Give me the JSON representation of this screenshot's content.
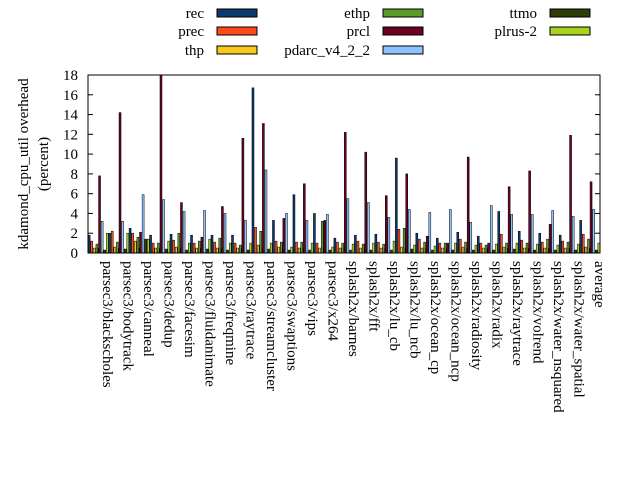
{
  "chart_data": {
    "type": "bar",
    "ylabel": "kdamond_cpu_util overhead\n(percent)",
    "ylabel_lines": [
      "kdamond_cpu_util overhead",
      "(percent)"
    ],
    "ylim": [
      0,
      18
    ],
    "yticks": [
      0,
      2,
      4,
      6,
      8,
      10,
      12,
      14,
      16,
      18
    ],
    "grid": false,
    "legend_position": "top",
    "categories": [
      "parsec3/blackscholes",
      "parsec3/bodytrack",
      "parsec3/canneal",
      "parsec3/dedup",
      "parsec3/facesim",
      "parsec3/fluidanimate",
      "parsec3/freqmine",
      "parsec3/raytrace",
      "parsec3/streamcluster",
      "parsec3/swaptions",
      "parsec3/vips",
      "parsec3/x264",
      "splash2x/barnes",
      "splash2x/fft",
      "splash2x/lu_cb",
      "splash2x/lu_ncb",
      "splash2x/ocean_cp",
      "splash2x/ocean_ncp",
      "splash2x/radiosity",
      "splash2x/radix",
      "splash2x/raytrace",
      "splash2x/volrend",
      "splash2x/water_nsquared",
      "splash2x/water_spatial",
      "average"
    ],
    "series": [
      {
        "name": "rec",
        "color": "#0b3a6e",
        "values": [
          1.8,
          2.0,
          2.5,
          1.8,
          1.9,
          1.8,
          1.8,
          1.8,
          16.7,
          3.3,
          5.9,
          4.0,
          1.5,
          1.8,
          1.9,
          9.6,
          2.0,
          1.5,
          2.1,
          1.7,
          4.2,
          2.2,
          2.0,
          1.8,
          3.3
        ]
      },
      {
        "name": "prec",
        "color": "#ff4a1c",
        "values": [
          1.2,
          2.2,
          2.0,
          1.0,
          1.3,
          1.0,
          1.1,
          1.0,
          2.6,
          1.2,
          1.1,
          1.0,
          1.1,
          1.2,
          1.1,
          2.4,
          1.4,
          1.0,
          1.4,
          1.0,
          1.9,
          1.3,
          1.1,
          1.2,
          1.9
        ]
      },
      {
        "name": "thp",
        "color": "#f8c81c",
        "values": [
          0.5,
          0.6,
          1.2,
          0.5,
          0.6,
          0.5,
          0.5,
          0.5,
          0.8,
          0.6,
          0.5,
          0.5,
          0.5,
          0.5,
          0.5,
          0.6,
          0.5,
          0.5,
          0.6,
          0.5,
          0.6,
          0.5,
          0.5,
          0.5,
          0.6
        ]
      },
      {
        "name": "ethp",
        "color": "#5a9b2a",
        "values": [
          0.9,
          1.1,
          1.6,
          1.0,
          2.0,
          1.2,
          1.5,
          0.8,
          2.2,
          1.1,
          1.1,
          3.2,
          1.0,
          0.9,
          0.9,
          2.5,
          1.1,
          1.0,
          1.1,
          0.8,
          1.0,
          1.0,
          1.4,
          1.1,
          1.4
        ]
      },
      {
        "name": "prcl",
        "color": "#6b0020",
        "values": [
          7.8,
          14.2,
          2.1,
          18.0,
          5.1,
          1.6,
          4.7,
          11.6,
          13.1,
          3.5,
          7.0,
          3.3,
          12.2,
          10.2,
          5.8,
          8.0,
          1.7,
          1.0,
          9.7,
          1.0,
          6.7,
          8.3,
          2.9,
          11.9,
          7.2
        ]
      },
      {
        "name": "pdarc_v4_2_2",
        "color": "#8cc4ff",
        "values": [
          3.2,
          3.2,
          5.9,
          5.4,
          4.2,
          4.3,
          4.0,
          3.3,
          8.4,
          4.0,
          3.3,
          3.9,
          5.5,
          5.1,
          3.6,
          4.4,
          4.1,
          4.4,
          3.1,
          4.8,
          3.9,
          3.9,
          4.3,
          3.7,
          4.4
        ]
      },
      {
        "name": "ttmo",
        "color": "#2e3c0c",
        "values": [
          0.3,
          0.4,
          1.4,
          0.4,
          0.3,
          0.4,
          0.3,
          0.3,
          0.4,
          0.3,
          0.3,
          0.3,
          0.3,
          0.3,
          0.3,
          0.4,
          0.3,
          0.3,
          0.3,
          0.3,
          0.4,
          0.3,
          0.3,
          0.3,
          0.3
        ]
      },
      {
        "name": "plrus-2",
        "color": "#a8d21c",
        "values": [
          2.0,
          2.0,
          1.4,
          1.2,
          1.0,
          1.4,
          1.0,
          1.0,
          1.0,
          0.6,
          1.0,
          0.6,
          0.9,
          1.0,
          1.2,
          0.8,
          0.7,
          1.0,
          0.8,
          0.9,
          1.0,
          0.9,
          0.8,
          0.9,
          1.0
        ]
      }
    ]
  }
}
